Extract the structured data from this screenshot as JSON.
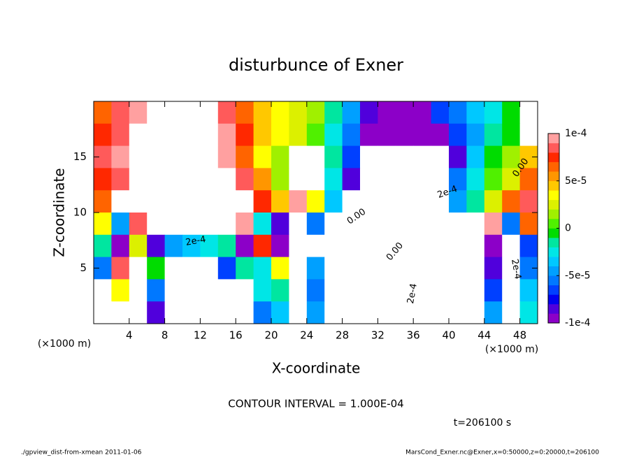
{
  "chart_data": {
    "type": "heatmap",
    "title": "disturbunce of Exner",
    "x_label": "X-coordinate",
    "y_label": "Z-coordinate",
    "x_unit": "(×1000 m)",
    "y_unit": "(×1000 m)",
    "contour_interval": "CONTOUR INTERVAL = 1.000E-04",
    "time_label": "t=206100 s",
    "footer_left": "./gpview_dist-from-xmean  2011-01-06",
    "footer_right": "MarsCond_Exner.nc@Exner,x=0:50000,z=0:20000,t=206100",
    "annotations": [
      "0.00",
      "0.00",
      "0.00",
      "2e-4",
      "2e-4",
      "2e-4",
      "2e-4"
    ],
    "xlim": [
      0,
      50
    ],
    "ylim": [
      0,
      20
    ],
    "xticks": [
      4,
      8,
      12,
      16,
      20,
      24,
      28,
      32,
      36,
      40,
      44,
      48
    ],
    "yticks": [
      5,
      10,
      15
    ],
    "clim": [
      -0.0001,
      0.0001
    ],
    "cticks": [
      {
        "value": 0.0001,
        "label": "1e-4"
      },
      {
        "value": 5e-05,
        "label": "5e-5"
      },
      0,
      {
        "value": -5e-05,
        "label": "-5e-5"
      },
      {
        "value": -0.0001,
        "label": "-1e-4"
      }
    ],
    "colors": [
      "#8c00c8",
      "#5000dc",
      "#0000f0",
      "#0040ff",
      "#0078ff",
      "#00a0ff",
      "#00c8ff",
      "#00e6e6",
      "#00e6a0",
      "#00dc00",
      "#50f000",
      "#a0f000",
      "#dcf000",
      "#ffff00",
      "#ffc800",
      "#ff9600",
      "#ff6400",
      "#ff2800",
      "#ff5a5a",
      "#ffa0a0"
    ],
    "z": [
      [
        6e-05,
        8e-05,
        9e-05,
        0.0002,
        0.0002,
        0.0002,
        0.0002,
        8e-05,
        6e-05,
        4e-05,
        3e-05,
        2e-05,
        1e-05,
        -2e-05,
        -5e-05,
        -8e-05,
        -0.0001,
        -0.0001,
        -9e-05,
        -7e-05,
        -6e-05,
        -4e-05,
        -3e-05,
        -1e-05,
        0.0002
      ],
      [
        7e-05,
        8e-05,
        0.0002,
        0.0002,
        0.0002,
        0.0002,
        0.0002,
        9e-05,
        7e-05,
        4e-05,
        3e-05,
        2e-05,
        0,
        -3e-05,
        -6e-05,
        -0.0001,
        -0.0001,
        -9e-05,
        -0.0001,
        -9e-05,
        -7e-05,
        -5e-05,
        -2e-05,
        -1e-05,
        0.0002
      ],
      [
        8e-05,
        9e-05,
        0.0002,
        0.0002,
        0.0002,
        0.0002,
        0.0002,
        9e-05,
        6e-05,
        3e-05,
        1e-05,
        0.0002,
        0.0002,
        -2e-05,
        -7e-05,
        -0.0002,
        -0.0002,
        -0.0002,
        -0.0002,
        -0.0002,
        -8e-05,
        -4e-05,
        -1e-05,
        1e-05,
        4e-05
      ],
      [
        7e-05,
        8e-05,
        0.0002,
        0.0002,
        0.0002,
        0.0002,
        0.0002,
        0.0002,
        8e-05,
        5e-05,
        1e-05,
        0.0002,
        0.0002,
        -3e-05,
        -8e-05,
        -0.0002,
        -0.0002,
        -0.0002,
        -0.0002,
        -0.0002,
        -6e-05,
        -3e-05,
        0,
        2e-05,
        6e-05
      ],
      [
        6e-05,
        0.0002,
        0.0002,
        0.0002,
        0.0002,
        0.0002,
        0.0002,
        0.0002,
        0.0002,
        7e-05,
        4e-05,
        9e-05,
        3e-05,
        -4e-05,
        -0.0002,
        -0.0002,
        -0.0002,
        -0.0002,
        -0.0002,
        -0.0002,
        -5e-05,
        -2e-05,
        2e-05,
        6e-05,
        8e-05
      ],
      [
        3e-05,
        -5e-05,
        8e-05,
        0.0002,
        0.0002,
        0.0002,
        0.0002,
        0.0002,
        9e-05,
        -3e-05,
        -8e-05,
        -0.0002,
        -6e-05,
        -0.0002,
        -0.0002,
        -0.0002,
        -0.0002,
        -0.0002,
        -0.0002,
        -0.0002,
        -0.0002,
        -0.0002,
        9e-05,
        -6e-05,
        6e-05
      ],
      [
        -2e-05,
        -9e-05,
        2e-05,
        -8e-05,
        -5e-05,
        -4e-05,
        -3e-05,
        -2e-05,
        -9e-05,
        7e-05,
        -9e-05,
        -0.0002,
        0.0002,
        0.0002,
        0.0002,
        0.0002,
        0.0002,
        0.0002,
        -0.0002,
        -0.0002,
        -0.0002,
        -0.0002,
        -9e-05,
        -0.0002,
        -7e-05
      ],
      [
        -6e-05,
        8e-05,
        -0.0002,
        -1e-05,
        0.0002,
        0.0002,
        0.0002,
        -7e-05,
        -2e-05,
        -3e-05,
        3e-05,
        0.0002,
        -5e-05,
        0.0002,
        0.0002,
        0.0002,
        0.0002,
        0.0002,
        -0.0002,
        -0.0002,
        -0.0002,
        0.0002,
        -8e-05,
        0.0002,
        -6e-05
      ],
      [
        0.0002,
        3e-05,
        0.0002,
        -6e-05,
        -0.0002,
        -0.0002,
        -0.0002,
        0.0002,
        0.0002,
        -3e-05,
        -2e-05,
        0.0002,
        -6e-05,
        0.0002,
        0.0002,
        0.0002,
        0.0002,
        0.0002,
        -0.0002,
        -0.0002,
        -0.0002,
        0.0002,
        -7e-05,
        0.0002,
        -4e-05
      ],
      [
        0.0002,
        0.0002,
        0.0002,
        -8e-05,
        -0.0002,
        -0.0002,
        -0.0002,
        0.0002,
        0.0002,
        -6e-05,
        -4e-05,
        -0.0002,
        -5e-05,
        0.0002,
        0.0002,
        0.0002,
        0.0002,
        0.0002,
        -0.0002,
        -0.0002,
        -0.0002,
        0.0002,
        -5e-05,
        0.0002,
        -3e-05
      ]
    ]
  }
}
